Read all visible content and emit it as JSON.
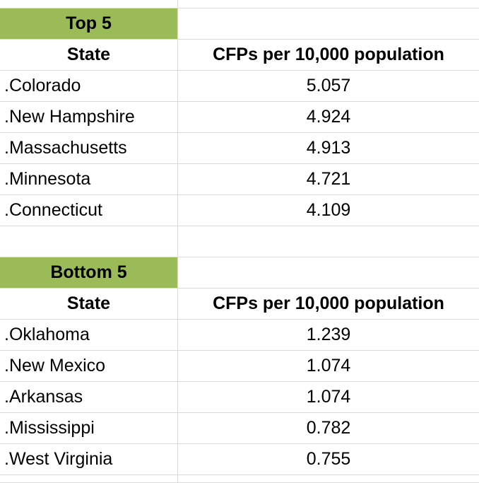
{
  "top": {
    "title": "Top 5",
    "col_state": "State",
    "col_value": "CFPs per 10,000 population",
    "rows": [
      {
        "state": ".Colorado",
        "value": "5.057"
      },
      {
        "state": ".New Hampshire",
        "value": "4.924"
      },
      {
        "state": ".Massachusetts",
        "value": "4.913"
      },
      {
        "state": ".Minnesota",
        "value": "4.721"
      },
      {
        "state": ".Connecticut",
        "value": "4.109"
      }
    ]
  },
  "bottom": {
    "title": "Bottom 5",
    "col_state": "State",
    "col_value": "CFPs per 10,000 population",
    "rows": [
      {
        "state": ".Oklahoma",
        "value": "1.239"
      },
      {
        "state": ".New Mexico",
        "value": "1.074"
      },
      {
        "state": ".Arkansas",
        "value": "1.074"
      },
      {
        "state": ".Mississippi",
        "value": "0.782"
      },
      {
        "state": ".West Virginia",
        "value": "0.755"
      }
    ]
  },
  "colors": {
    "header_band": "#9bbb59",
    "gridline": "#d9d9d9"
  }
}
